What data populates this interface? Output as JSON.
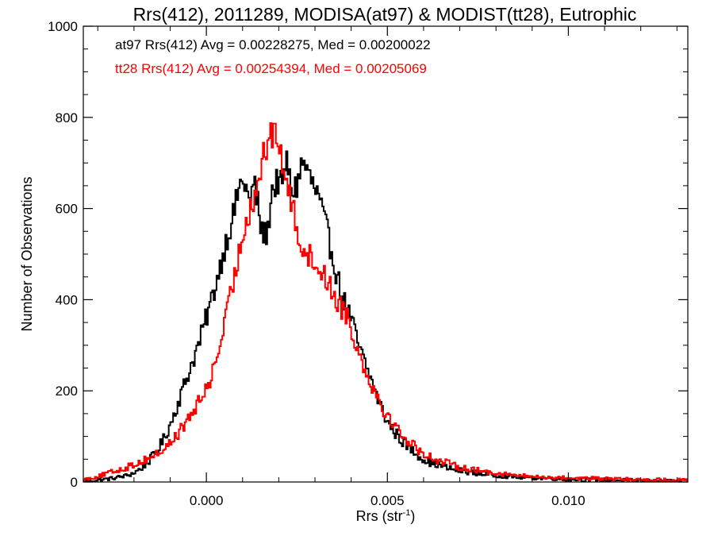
{
  "chart_data": {
    "type": "histogram",
    "title": "Rrs(412), 2011289, MODISA(at97) & MODIST(tt28), Eutrophic",
    "xlabel_main": "Rrs (str",
    "xlabel_sup": "-1",
    "xlabel_close": ")",
    "ylabel": "Number of Observations",
    "xlim": [
      -0.0034,
      0.0133
    ],
    "ylim": [
      0,
      1000
    ],
    "xticks": [
      0.0,
      0.005,
      0.01
    ],
    "xtick_labels": [
      "0.000",
      "0.005",
      "0.010"
    ],
    "yticks": [
      0,
      200,
      400,
      600,
      800,
      1000
    ],
    "ytick_labels": [
      "0",
      "200",
      "400",
      "600",
      "800",
      "1000"
    ],
    "grid": false,
    "legend_placement": "top-left",
    "series": [
      {
        "name": "at97",
        "color": "#000000",
        "annotation": "at97 Rrs(412) Avg = 0.00228275, Med = 0.00200022",
        "avg": 0.00228275,
        "median": 0.00200022,
        "points": [
          [
            -0.0034,
            2
          ],
          [
            -0.003,
            4
          ],
          [
            -0.0026,
            8
          ],
          [
            -0.0022,
            14
          ],
          [
            -0.002,
            20
          ],
          [
            -0.0018,
            30
          ],
          [
            -0.0016,
            45
          ],
          [
            -0.0014,
            65
          ],
          [
            -0.0012,
            90
          ],
          [
            -0.001,
            125
          ],
          [
            -0.0008,
            170
          ],
          [
            -0.0006,
            215
          ],
          [
            -0.0004,
            260
          ],
          [
            -0.0002,
            305
          ],
          [
            0.0,
            360
          ],
          [
            0.0002,
            415
          ],
          [
            0.0004,
            480
          ],
          [
            0.0006,
            545
          ],
          [
            0.0008,
            600
          ],
          [
            0.0009,
            650
          ],
          [
            0.0011,
            655
          ],
          [
            0.0012,
            600
          ],
          [
            0.0013,
            660
          ],
          [
            0.0014,
            620
          ],
          [
            0.0015,
            560
          ],
          [
            0.0016,
            540
          ],
          [
            0.0017,
            550
          ],
          [
            0.0018,
            640
          ],
          [
            0.0019,
            650
          ],
          [
            0.002,
            665
          ],
          [
            0.0021,
            640
          ],
          [
            0.0022,
            715
          ],
          [
            0.0023,
            660
          ],
          [
            0.0024,
            640
          ],
          [
            0.0025,
            650
          ],
          [
            0.0026,
            690
          ],
          [
            0.0027,
            700
          ],
          [
            0.0028,
            680
          ],
          [
            0.0029,
            660
          ],
          [
            0.003,
            640
          ],
          [
            0.0031,
            625
          ],
          [
            0.0032,
            590
          ],
          [
            0.0033,
            560
          ],
          [
            0.0034,
            525
          ],
          [
            0.0035,
            495
          ],
          [
            0.0036,
            455
          ],
          [
            0.0037,
            425
          ],
          [
            0.0038,
            395
          ],
          [
            0.0039,
            380
          ],
          [
            0.004,
            355
          ],
          [
            0.0041,
            330
          ],
          [
            0.0042,
            300
          ],
          [
            0.0043,
            278
          ],
          [
            0.0044,
            255
          ],
          [
            0.0045,
            235
          ],
          [
            0.0046,
            215
          ],
          [
            0.0047,
            190
          ],
          [
            0.0048,
            170
          ],
          [
            0.0049,
            150
          ],
          [
            0.005,
            132
          ],
          [
            0.0052,
            110
          ],
          [
            0.0054,
            90
          ],
          [
            0.0056,
            75
          ],
          [
            0.0058,
            62
          ],
          [
            0.006,
            50
          ],
          [
            0.0062,
            42
          ],
          [
            0.0064,
            38
          ],
          [
            0.0066,
            32
          ],
          [
            0.0068,
            28
          ],
          [
            0.007,
            25
          ],
          [
            0.0075,
            19
          ],
          [
            0.008,
            15
          ],
          [
            0.0085,
            11
          ],
          [
            0.009,
            9
          ],
          [
            0.0095,
            8
          ],
          [
            0.01,
            6
          ],
          [
            0.0105,
            5
          ],
          [
            0.011,
            4
          ],
          [
            0.0115,
            4
          ],
          [
            0.012,
            3
          ],
          [
            0.0125,
            2
          ],
          [
            0.013,
            2
          ],
          [
            0.0133,
            2
          ]
        ]
      },
      {
        "name": "tt28",
        "color": "#ff0000",
        "annotation": "tt28 Rrs(412) Avg = 0.00254394, Med = 0.00205069",
        "avg": 0.00254394,
        "median": 0.00205069,
        "points": [
          [
            -0.0034,
            5
          ],
          [
            -0.003,
            12
          ],
          [
            -0.0026,
            22
          ],
          [
            -0.0022,
            32
          ],
          [
            -0.002,
            38
          ],
          [
            -0.0018,
            45
          ],
          [
            -0.0016,
            52
          ],
          [
            -0.0014,
            60
          ],
          [
            -0.0012,
            70
          ],
          [
            -0.001,
            85
          ],
          [
            -0.0008,
            105
          ],
          [
            -0.0006,
            125
          ],
          [
            -0.0004,
            150
          ],
          [
            -0.0002,
            175
          ],
          [
            0.0,
            205
          ],
          [
            0.0002,
            245
          ],
          [
            0.0004,
            310
          ],
          [
            0.0006,
            380
          ],
          [
            0.0008,
            460
          ],
          [
            0.001,
            540
          ],
          [
            0.0011,
            580
          ],
          [
            0.0012,
            600
          ],
          [
            0.0013,
            620
          ],
          [
            0.0014,
            650
          ],
          [
            0.0015,
            680
          ],
          [
            0.0016,
            740
          ],
          [
            0.0017,
            720
          ],
          [
            0.0018,
            760
          ],
          [
            0.0019,
            785
          ],
          [
            0.002,
            740
          ],
          [
            0.0021,
            690
          ],
          [
            0.0022,
            680
          ],
          [
            0.0023,
            620
          ],
          [
            0.0024,
            600
          ],
          [
            0.0025,
            560
          ],
          [
            0.0026,
            530
          ],
          [
            0.0027,
            510
          ],
          [
            0.0028,
            500
          ],
          [
            0.0029,
            490
          ],
          [
            0.003,
            480
          ],
          [
            0.0031,
            470
          ],
          [
            0.0032,
            460
          ],
          [
            0.0033,
            450
          ],
          [
            0.0034,
            430
          ],
          [
            0.0035,
            415
          ],
          [
            0.0036,
            400
          ],
          [
            0.0037,
            385
          ],
          [
            0.0038,
            380
          ],
          [
            0.0039,
            365
          ],
          [
            0.004,
            340
          ],
          [
            0.0041,
            310
          ],
          [
            0.0042,
            285
          ],
          [
            0.0043,
            265
          ],
          [
            0.0044,
            245
          ],
          [
            0.0045,
            228
          ],
          [
            0.0046,
            210
          ],
          [
            0.0047,
            192
          ],
          [
            0.0048,
            175
          ],
          [
            0.0049,
            160
          ],
          [
            0.005,
            145
          ],
          [
            0.0052,
            125
          ],
          [
            0.0054,
            105
          ],
          [
            0.0056,
            88
          ],
          [
            0.0058,
            75
          ],
          [
            0.006,
            62
          ],
          [
            0.0062,
            55
          ],
          [
            0.0064,
            48
          ],
          [
            0.0066,
            42
          ],
          [
            0.0068,
            38
          ],
          [
            0.007,
            33
          ],
          [
            0.0075,
            25
          ],
          [
            0.008,
            20
          ],
          [
            0.0085,
            15
          ],
          [
            0.009,
            12
          ],
          [
            0.0095,
            10
          ],
          [
            0.01,
            9
          ],
          [
            0.0105,
            8
          ],
          [
            0.011,
            7
          ],
          [
            0.0115,
            6
          ],
          [
            0.012,
            5
          ],
          [
            0.0125,
            5
          ],
          [
            0.013,
            4
          ],
          [
            0.0133,
            4
          ]
        ]
      }
    ]
  }
}
